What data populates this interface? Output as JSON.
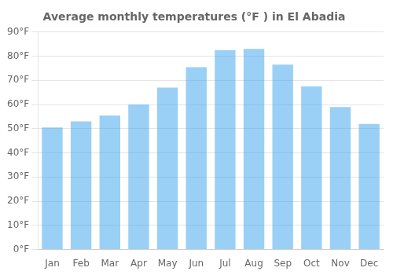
{
  "chart_data": {
    "type": "bar",
    "title": "Average monthly temperatures (°F ) in El Abadia",
    "categories": [
      "Jan",
      "Feb",
      "Mar",
      "Apr",
      "May",
      "Jun",
      "Jul",
      "Aug",
      "Sep",
      "Oct",
      "Nov",
      "Dec"
    ],
    "values": [
      50.5,
      53.0,
      55.5,
      60.0,
      67.0,
      75.5,
      82.5,
      83.0,
      76.5,
      67.5,
      59.0,
      52.0
    ],
    "ylim": [
      0,
      90
    ],
    "yticks": [
      {
        "value": 0,
        "label": "0°F"
      },
      {
        "value": 10,
        "label": "10°F"
      },
      {
        "value": 20,
        "label": "20°F"
      },
      {
        "value": 30,
        "label": "30°F"
      },
      {
        "value": 40,
        "label": "40°F"
      },
      {
        "value": 50,
        "label": "50°F"
      },
      {
        "value": 60,
        "label": "60°F"
      },
      {
        "value": 70,
        "label": "70°F"
      },
      {
        "value": 80,
        "label": "80°F"
      },
      {
        "value": 90,
        "label": "90°F"
      }
    ],
    "grid": true
  }
}
